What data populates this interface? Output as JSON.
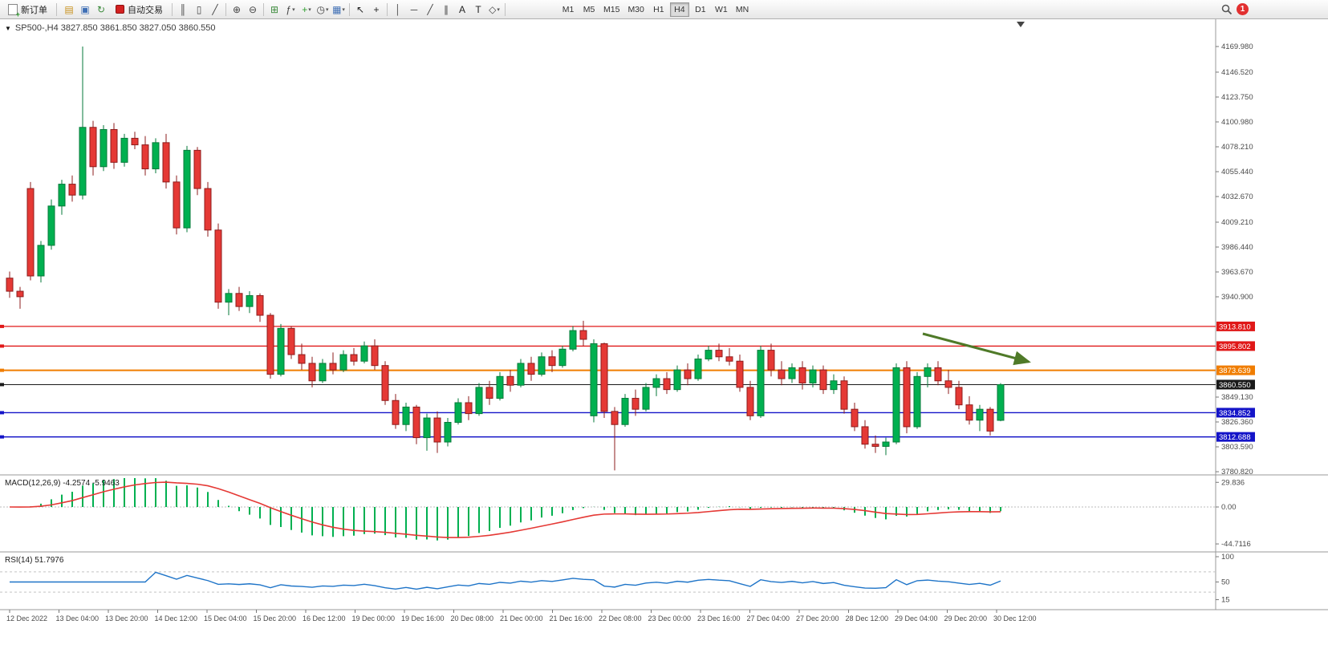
{
  "toolbar": {
    "new_order_label": "新订单",
    "auto_trading_label": "自动交易",
    "icons_a": [
      {
        "name": "layers-icon",
        "glyph": "▤",
        "color": "#c8901a"
      },
      {
        "name": "window-icon",
        "glyph": "▣",
        "color": "#3f6fb5"
      },
      {
        "name": "refresh-icon",
        "glyph": "↻",
        "color": "#3a8a3a"
      }
    ],
    "icons_b": [
      {
        "sep": true
      },
      {
        "name": "bar-chart-icon",
        "glyph": "║",
        "color": "#444"
      },
      {
        "name": "candlestick-icon",
        "glyph": "▯",
        "color": "#444"
      },
      {
        "name": "line-chart-icon",
        "glyph": "╱",
        "color": "#444"
      },
      {
        "sep": true
      },
      {
        "name": "zoom-in-icon",
        "glyph": "⊕",
        "color": "#444"
      },
      {
        "name": "zoom-out-icon",
        "glyph": "⊖",
        "color": "#444"
      },
      {
        "sep": true
      },
      {
        "name": "tile-windows-icon",
        "glyph": "⊞",
        "color": "#3a8a3a"
      },
      {
        "name": "indicators-icon",
        "glyph": "ƒ",
        "color": "#444",
        "caret": true
      },
      {
        "name": "add-indicator-icon",
        "glyph": "+",
        "color": "#2e9e2e",
        "caret": true
      },
      {
        "name": "period-icon",
        "glyph": "◷",
        "color": "#444",
        "caret": true
      },
      {
        "name": "template-icon",
        "glyph": "▦",
        "color": "#3f6fb5",
        "caret": true
      },
      {
        "sep": true
      },
      {
        "name": "cursor-icon",
        "glyph": "↖",
        "color": "#222"
      },
      {
        "name": "crosshair-icon",
        "glyph": "+",
        "color": "#222"
      },
      {
        "sep": true
      },
      {
        "name": "vertical-line-icon",
        "glyph": "│",
        "color": "#444"
      },
      {
        "name": "horizontal-line-icon",
        "glyph": "─",
        "color": "#444"
      },
      {
        "name": "trendline-icon",
        "glyph": "╱",
        "color": "#444"
      },
      {
        "name": "channel-icon",
        "glyph": "∥",
        "color": "#444"
      },
      {
        "name": "text-icon",
        "glyph": "A",
        "color": "#222"
      },
      {
        "name": "label-icon",
        "glyph": "T",
        "color": "#222"
      },
      {
        "name": "shapes-icon",
        "glyph": "◇",
        "color": "#444",
        "caret": true
      },
      {
        "sep": true
      }
    ],
    "timeframes": [
      "M1",
      "M5",
      "M15",
      "M30",
      "H1",
      "H4",
      "D1",
      "W1",
      "MN"
    ],
    "active_timeframe": "H4",
    "notification_count": "1"
  },
  "chart": {
    "title_text": "SP500-,H4  3827.850 3861.850 3827.050 3860.550"
  },
  "chart_data": {
    "type": "candlestick",
    "symbol": "SP500-",
    "timeframe": "H4",
    "ohlc_readout": {
      "open": "3827.850",
      "high": "3861.850",
      "low": "3827.050",
      "close": "3860.550"
    },
    "price_axis_labels": [
      "4169.980",
      "4146.520",
      "4123.750",
      "4100.980",
      "4078.210",
      "4055.440",
      "4032.670",
      "4009.210",
      "3986.440",
      "3963.670",
      "3940.900",
      "3849.130",
      "3826.360",
      "3803.590",
      "3780.820"
    ],
    "hlines": [
      {
        "label": "3913.810",
        "price": 3913.81,
        "color": "#e01818",
        "width": 1.3
      },
      {
        "label": "3895.802",
        "price": 3895.802,
        "color": "#e01818",
        "width": 1.3
      },
      {
        "label": "3873.639",
        "price": 3873.639,
        "color": "#f07d00",
        "width": 2
      },
      {
        "label": "3860.550",
        "price": 3860.55,
        "color": "#1a1a1a",
        "width": 1
      },
      {
        "label": "3834.852",
        "price": 3834.852,
        "color": "#1414c8",
        "width": 1.4
      },
      {
        "label": "3812.688",
        "price": 3812.688,
        "color": "#1414c8",
        "width": 1.4
      }
    ],
    "time_axis_labels": [
      "12 Dec 2022",
      "13 Dec 04:00",
      "13 Dec 20:00",
      "14 Dec 12:00",
      "15 Dec 04:00",
      "15 Dec 20:00",
      "16 Dec 12:00",
      "19 Dec 00:00",
      "19 Dec 16:00",
      "20 Dec 08:00",
      "21 Dec 00:00",
      "21 Dec 16:00",
      "22 Dec 08:00",
      "23 Dec 00:00",
      "23 Dec 16:00",
      "27 Dec 04:00",
      "27 Dec 20:00",
      "28 Dec 12:00",
      "29 Dec 04:00",
      "29 Dec 20:00",
      "30 Dec 12:00"
    ],
    "candles": [
      [
        3958,
        3964,
        3940,
        3946
      ],
      [
        3946,
        3950,
        3930,
        3941
      ],
      [
        4040,
        4046,
        3956,
        3960
      ],
      [
        3960,
        3992,
        3954,
        3988
      ],
      [
        3988,
        4030,
        3984,
        4024
      ],
      [
        4024,
        4048,
        4016,
        4044
      ],
      [
        4044,
        4052,
        4028,
        4034
      ],
      [
        4034,
        4170,
        4030,
        4096
      ],
      [
        4096,
        4102,
        4052,
        4060
      ],
      [
        4060,
        4098,
        4056,
        4094
      ],
      [
        4094,
        4100,
        4058,
        4064
      ],
      [
        4064,
        4090,
        4060,
        4086
      ],
      [
        4086,
        4092,
        4076,
        4080
      ],
      [
        4080,
        4088,
        4052,
        4058
      ],
      [
        4058,
        4086,
        4054,
        4082
      ],
      [
        4082,
        4090,
        4040,
        4046
      ],
      [
        4046,
        4052,
        3998,
        4004
      ],
      [
        4004,
        4079,
        4000,
        4075
      ],
      [
        4075,
        4078,
        4034,
        4040
      ],
      [
        4040,
        4046,
        3996,
        4002
      ],
      [
        4002,
        4008,
        3930,
        3936
      ],
      [
        3936,
        3948,
        3924,
        3944
      ],
      [
        3944,
        3950,
        3928,
        3932
      ],
      [
        3932,
        3946,
        3926,
        3942
      ],
      [
        3942,
        3944,
        3918,
        3924
      ],
      [
        3924,
        3926,
        3866,
        3870
      ],
      [
        3870,
        3916,
        3868,
        3912
      ],
      [
        3912,
        3914,
        3884,
        3888
      ],
      [
        3888,
        3898,
        3874,
        3880
      ],
      [
        3880,
        3886,
        3858,
        3864
      ],
      [
        3864,
        3884,
        3862,
        3880
      ],
      [
        3880,
        3890,
        3870,
        3874
      ],
      [
        3874,
        3892,
        3872,
        3888
      ],
      [
        3888,
        3894,
        3878,
        3882
      ],
      [
        3882,
        3900,
        3880,
        3896
      ],
      [
        3896,
        3902,
        3874,
        3878
      ],
      [
        3878,
        3882,
        3842,
        3846
      ],
      [
        3846,
        3852,
        3820,
        3824
      ],
      [
        3824,
        3844,
        3818,
        3840
      ],
      [
        3840,
        3842,
        3806,
        3812
      ],
      [
        3812,
        3834,
        3800,
        3830
      ],
      [
        3830,
        3836,
        3798,
        3808
      ],
      [
        3808,
        3830,
        3804,
        3826
      ],
      [
        3826,
        3848,
        3824,
        3844
      ],
      [
        3844,
        3850,
        3828,
        3834
      ],
      [
        3834,
        3862,
        3832,
        3858
      ],
      [
        3858,
        3864,
        3842,
        3848
      ],
      [
        3848,
        3872,
        3846,
        3868
      ],
      [
        3868,
        3874,
        3854,
        3860
      ],
      [
        3860,
        3884,
        3858,
        3880
      ],
      [
        3880,
        3886,
        3864,
        3870
      ],
      [
        3870,
        3890,
        3868,
        3886
      ],
      [
        3886,
        3892,
        3872,
        3878
      ],
      [
        3878,
        3896,
        3876,
        3893
      ],
      [
        3893,
        3914,
        3891,
        3910
      ],
      [
        3910,
        3919,
        3896,
        3902
      ],
      [
        3832,
        3902,
        3826,
        3898
      ],
      [
        3898,
        3899,
        3830,
        3836
      ],
      [
        3836,
        3840,
        3782,
        3824
      ],
      [
        3824,
        3852,
        3822,
        3848
      ],
      [
        3848,
        3856,
        3832,
        3838
      ],
      [
        3838,
        3862,
        3836,
        3858
      ],
      [
        3858,
        3870,
        3850,
        3866
      ],
      [
        3866,
        3872,
        3852,
        3856
      ],
      [
        3856,
        3878,
        3854,
        3874
      ],
      [
        3874,
        3880,
        3860,
        3866
      ],
      [
        3866,
        3888,
        3864,
        3884
      ],
      [
        3884,
        3896,
        3882,
        3892
      ],
      [
        3892,
        3898,
        3882,
        3886
      ],
      [
        3886,
        3894,
        3878,
        3882
      ],
      [
        3882,
        3888,
        3854,
        3858
      ],
      [
        3858,
        3864,
        3828,
        3832
      ],
      [
        3832,
        3896,
        3830,
        3892
      ],
      [
        3892,
        3898,
        3868,
        3874
      ],
      [
        3874,
        3882,
        3860,
        3866
      ],
      [
        3866,
        3880,
        3862,
        3876
      ],
      [
        3876,
        3882,
        3856,
        3862
      ],
      [
        3862,
        3878,
        3858,
        3874
      ],
      [
        3874,
        3878,
        3852,
        3856
      ],
      [
        3856,
        3870,
        3852,
        3864
      ],
      [
        3864,
        3868,
        3834,
        3838
      ],
      [
        3838,
        3844,
        3818,
        3822
      ],
      [
        3822,
        3828,
        3802,
        3806
      ],
      [
        3806,
        3814,
        3798,
        3804
      ],
      [
        3804,
        3812,
        3796,
        3808
      ],
      [
        3808,
        3880,
        3806,
        3876
      ],
      [
        3876,
        3882,
        3816,
        3822
      ],
      [
        3822,
        3872,
        3820,
        3868
      ],
      [
        3868,
        3880,
        3858,
        3876
      ],
      [
        3876,
        3882,
        3860,
        3864
      ],
      [
        3864,
        3874,
        3852,
        3858
      ],
      [
        3858,
        3864,
        3838,
        3842
      ],
      [
        3842,
        3850,
        3824,
        3828
      ],
      [
        3828,
        3842,
        3818,
        3838
      ],
      [
        3838,
        3840,
        3814,
        3818
      ],
      [
        3827.85,
        3861.85,
        3827.05,
        3860.55
      ]
    ],
    "annotation_arrow": {
      "color": "#4f7a28"
    },
    "indicators": {
      "macd": {
        "label": "MACD(12,26,9) -4.2574 -5.9463",
        "axis_labels": [
          "29.836",
          "0.00",
          "-44.7116"
        ],
        "histogram_color": "#00b050",
        "signal_color": "#e53935"
      },
      "rsi": {
        "label": "RSI(14) 51.7976",
        "axis_labels": [
          "100",
          "50",
          "15"
        ],
        "levels": [
          70,
          30
        ],
        "line_color": "#1e74c8"
      }
    },
    "colors": {
      "bull": "#00b050",
      "bull_border": "#067a3a",
      "bear": "#e53935",
      "bear_border": "#8e1c1c",
      "axis_text": "#4a4a4a"
    }
  }
}
